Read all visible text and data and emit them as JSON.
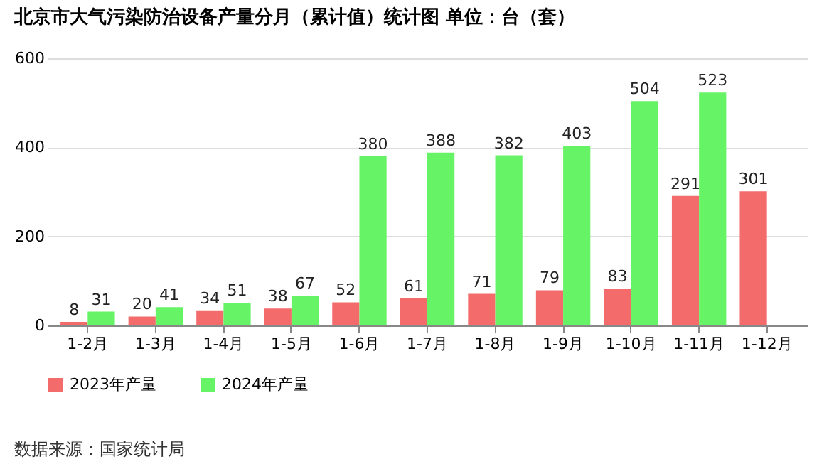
{
  "chart_data": {
    "type": "bar",
    "title": "北京市大气污染防治设备产量分月（累计值）统计图 单位：台（套）",
    "categories": [
      "1-2月",
      "1-3月",
      "1-4月",
      "1-5月",
      "1-6月",
      "1-7月",
      "1-8月",
      "1-9月",
      "1-10月",
      "1-11月",
      "1-12月"
    ],
    "series": [
      {
        "name": "2023年产量",
        "color": "#f36b6b",
        "values": [
          8,
          20,
          34,
          38,
          52,
          61,
          71,
          79,
          83,
          291,
          301
        ]
      },
      {
        "name": "2024年产量",
        "color": "#66f366",
        "values": [
          31,
          41,
          51,
          67,
          380,
          388,
          382,
          403,
          504,
          523,
          null
        ]
      }
    ],
    "ylim": [
      0,
      600
    ],
    "yticks": [
      0,
      200,
      400,
      600
    ],
    "grid": "y",
    "legend": "bottom",
    "data_labels": true,
    "annotations": [
      "数据来源：国家统计局"
    ]
  }
}
